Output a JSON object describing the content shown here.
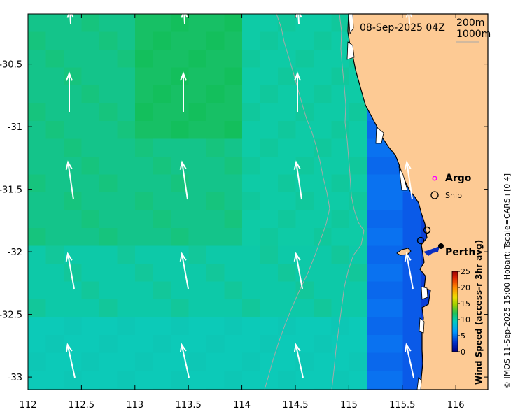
{
  "map": {
    "timestamp": "08-Sep-2025 04Z",
    "isobath_1": "200m",
    "isobath_2": "1000m",
    "x_ticks": [
      "112",
      "112.5",
      "113",
      "113.5",
      "114",
      "114.5",
      "115",
      "115.5",
      "116"
    ],
    "y_ticks": [
      "-30.5",
      "-31",
      "-31.5",
      "-32",
      "-32.5",
      "-33"
    ],
    "lon_range": [
      112,
      116.3
    ],
    "lat_range": [
      -33.1,
      -30.1
    ],
    "legend": {
      "argo_label": "Argo",
      "ship_label": "Ship"
    },
    "place_label": "Perth",
    "colorbar": {
      "title": "Wind Speed (access-r 3hr avg)",
      "ticks": [
        "25",
        "20",
        "15",
        "10",
        "5",
        "0"
      ],
      "range": [
        0,
        25
      ]
    },
    "credit": "© IMOS 11-Sep-2025 15:00 Hobart; Tscale=CARS+[0 4]",
    "colors": {
      "land": "#fdca94",
      "wind_high": "#15bf55",
      "wind_mid": "#0ccaa5",
      "wind_low": "#0a5ae8",
      "arrow": "#ffffff",
      "isobath": "#a8a8a8",
      "argo_marker": "#ff00ff"
    }
  }
}
